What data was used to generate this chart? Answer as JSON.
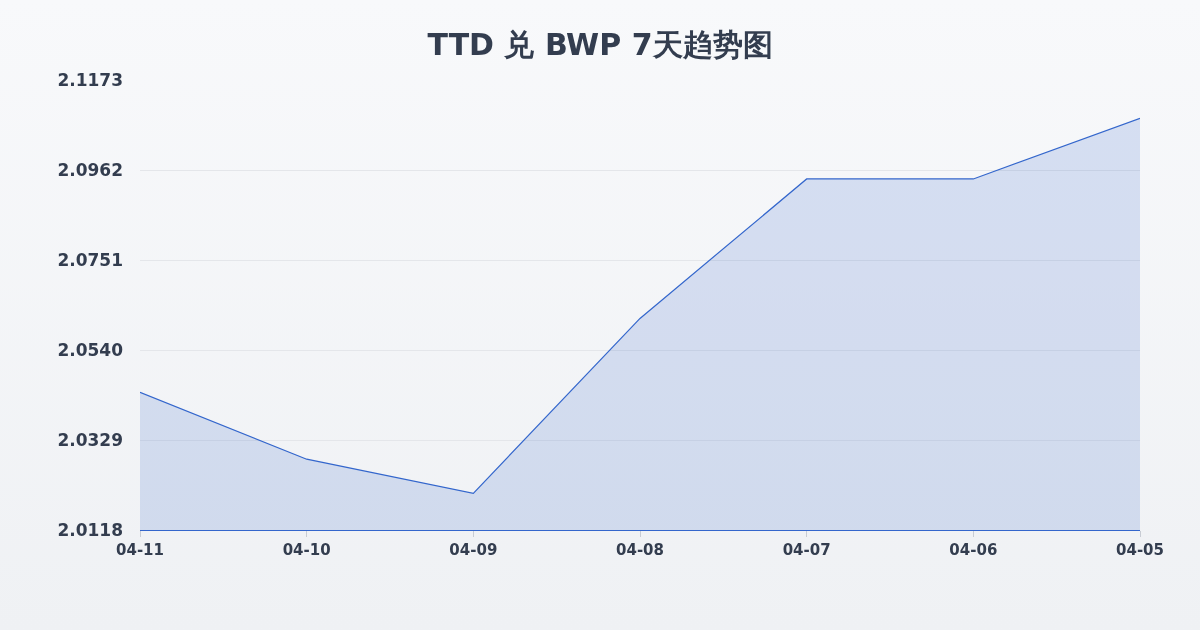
{
  "chart_data": {
    "type": "area",
    "title": "TTD 兑 BWP 7天趋势图",
    "categories": [
      "04-11",
      "04-10",
      "04-09",
      "04-08",
      "04-07",
      "04-06",
      "04-05"
    ],
    "series": [
      {
        "color": "#3366cc",
        "values": [
          2.0441,
          2.0284,
          2.0204,
          2.0614,
          2.0941,
          2.0941,
          2.1083
        ]
      }
    ],
    "ylim": [
      2.0118,
      2.1173
    ],
    "yticks": [
      2.0118,
      2.0329,
      {
        "value": 2.054,
        "label": "2.0540"
      },
      2.0751,
      2.0962,
      2.1173
    ],
    "grid": "y"
  }
}
